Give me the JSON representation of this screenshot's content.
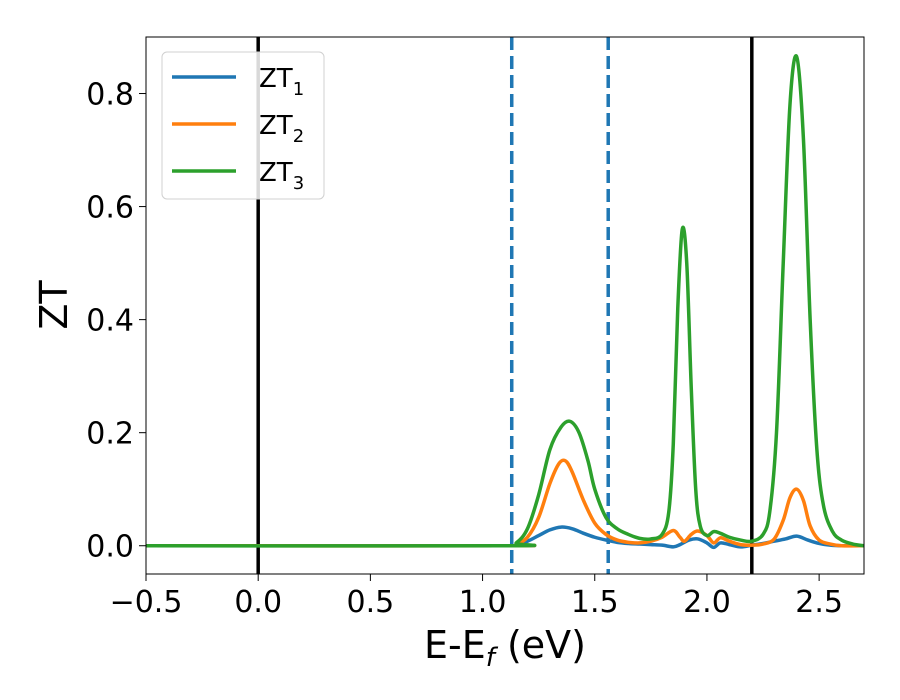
{
  "chart_data": {
    "type": "line",
    "xlabel_main": "E-E",
    "xlabel_sub": "f",
    "xlabel_tail": " (eV)",
    "ylabel": "ZT",
    "xlim": [
      -0.5,
      2.7
    ],
    "ylim": [
      -0.05,
      0.9
    ],
    "x_ticks": [
      -0.5,
      0.0,
      0.5,
      1.0,
      1.5,
      2.0,
      2.5
    ],
    "x_tick_labels": [
      "−0.5",
      "0.0",
      "0.5",
      "1.0",
      "1.5",
      "2.0",
      "2.5"
    ],
    "y_ticks": [
      0.0,
      0.2,
      0.4,
      0.6,
      0.8
    ],
    "y_tick_labels": [
      "0.0",
      "0.2",
      "0.4",
      "0.6",
      "0.8"
    ],
    "grid": false,
    "legend_position": "top-left",
    "vertical_lines": [
      {
        "x": 0.0,
        "style": "solid",
        "color": "#000000"
      },
      {
        "x": 1.13,
        "style": "dashed",
        "color": "#1f77b4"
      },
      {
        "x": 1.56,
        "style": "dashed",
        "color": "#1f77b4"
      },
      {
        "x": 2.2,
        "style": "solid",
        "color": "#000000"
      }
    ],
    "series": [
      {
        "name_main": "ZT",
        "name_sub": "1",
        "color": "#1f77b4",
        "x": [
          -0.5,
          1.1,
          1.15,
          1.2,
          1.25,
          1.3,
          1.35,
          1.4,
          1.45,
          1.5,
          1.55,
          1.6,
          1.65,
          1.7,
          1.75,
          1.8,
          1.85,
          1.88,
          1.92,
          1.96,
          2.0,
          2.03,
          2.06,
          2.1,
          2.15,
          2.2,
          2.25,
          2.3,
          2.35,
          2.4,
          2.45,
          2.5,
          2.55,
          2.6,
          2.7
        ],
        "y": [
          0.0,
          0.0,
          0.002,
          0.008,
          0.018,
          0.028,
          0.033,
          0.03,
          0.022,
          0.015,
          0.01,
          0.006,
          0.004,
          0.003,
          0.002,
          0.001,
          -0.002,
          0.002,
          0.01,
          0.012,
          0.005,
          -0.003,
          0.005,
          0.002,
          -0.002,
          0.001,
          0.004,
          0.008,
          0.012,
          0.017,
          0.01,
          0.004,
          0.001,
          0.0,
          0.0
        ]
      },
      {
        "name_main": "ZT",
        "name_sub": "2",
        "color": "#ff7f0e",
        "x": [
          -0.5,
          1.1,
          1.15,
          1.2,
          1.25,
          1.3,
          1.34,
          1.37,
          1.4,
          1.45,
          1.5,
          1.55,
          1.6,
          1.65,
          1.7,
          1.75,
          1.8,
          1.85,
          1.88,
          1.9,
          1.93,
          1.96,
          2.0,
          2.03,
          2.06,
          2.1,
          2.15,
          2.2,
          2.25,
          2.3,
          2.34,
          2.37,
          2.4,
          2.43,
          2.46,
          2.5,
          2.55,
          2.6,
          2.7
        ],
        "y": [
          0.0,
          0.0,
          0.003,
          0.015,
          0.05,
          0.11,
          0.145,
          0.15,
          0.13,
          0.08,
          0.04,
          0.02,
          0.01,
          0.006,
          0.005,
          0.008,
          0.015,
          0.027,
          0.015,
          0.008,
          0.02,
          0.026,
          0.018,
          0.005,
          0.014,
          0.008,
          0.002,
          0.001,
          0.003,
          0.012,
          0.045,
          0.085,
          0.1,
          0.08,
          0.035,
          0.01,
          0.003,
          0.0,
          0.0
        ]
      },
      {
        "name_main": "ZT",
        "name_sub": "3",
        "color": "#2ca02c",
        "x": [
          -0.5,
          1.1,
          1.15,
          1.2,
          1.25,
          1.3,
          1.35,
          1.39,
          1.43,
          1.47,
          1.5,
          1.55,
          1.6,
          1.65,
          1.7,
          1.75,
          1.8,
          1.83,
          1.85,
          1.87,
          1.89,
          1.91,
          1.93,
          1.95,
          1.97,
          2.0,
          2.03,
          2.06,
          2.1,
          2.15,
          2.2,
          2.25,
          2.28,
          2.31,
          2.34,
          2.37,
          2.4,
          2.43,
          2.46,
          2.49,
          2.52,
          2.56,
          2.6,
          2.65,
          2.7
        ],
        "y": [
          0.0,
          0.0,
          0.005,
          0.03,
          0.09,
          0.17,
          0.21,
          0.22,
          0.2,
          0.15,
          0.1,
          0.05,
          0.03,
          0.02,
          0.013,
          0.012,
          0.02,
          0.06,
          0.18,
          0.42,
          0.56,
          0.5,
          0.28,
          0.1,
          0.035,
          0.018,
          0.025,
          0.022,
          0.015,
          0.01,
          0.008,
          0.02,
          0.06,
          0.2,
          0.5,
          0.78,
          0.865,
          0.72,
          0.4,
          0.17,
          0.07,
          0.025,
          0.01,
          0.003,
          0.0
        ]
      }
    ]
  }
}
